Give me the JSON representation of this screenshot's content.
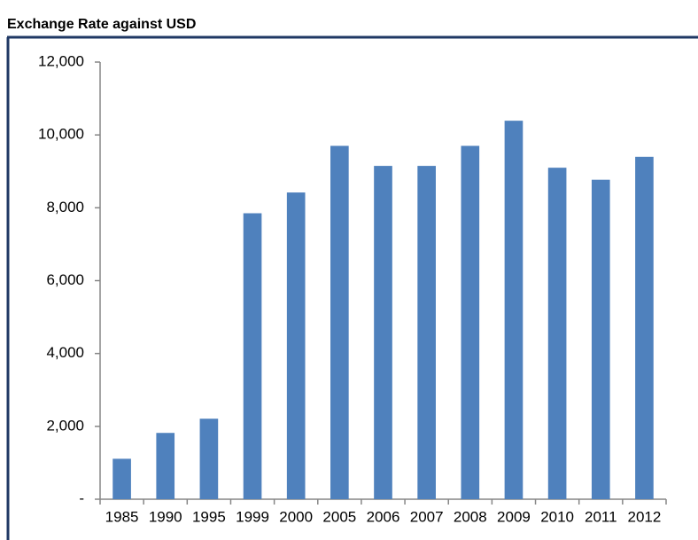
{
  "chart_data": {
    "type": "bar",
    "title": "Exchange Rate against USD",
    "categories": [
      "1985",
      "1990",
      "1995",
      "1999",
      "2000",
      "2005",
      "2006",
      "2007",
      "2008",
      "2009",
      "2010",
      "2011",
      "2012"
    ],
    "values": [
      1110,
      1820,
      2210,
      7850,
      8420,
      9700,
      9150,
      9150,
      9700,
      10390,
      9100,
      8770,
      9400
    ],
    "color": "#4f81bd",
    "ylim": [
      0,
      12000
    ],
    "yticks": [
      {
        "value": 0,
        "label": "-"
      },
      {
        "value": 2000,
        "label": "2,000"
      },
      {
        "value": 4000,
        "label": "4,000"
      },
      {
        "value": 6000,
        "label": "6,000"
      },
      {
        "value": 8000,
        "label": "8,000"
      },
      {
        "value": 10000,
        "label": "10,000"
      },
      {
        "value": 12000,
        "label": "12,000"
      }
    ],
    "grid": false
  }
}
